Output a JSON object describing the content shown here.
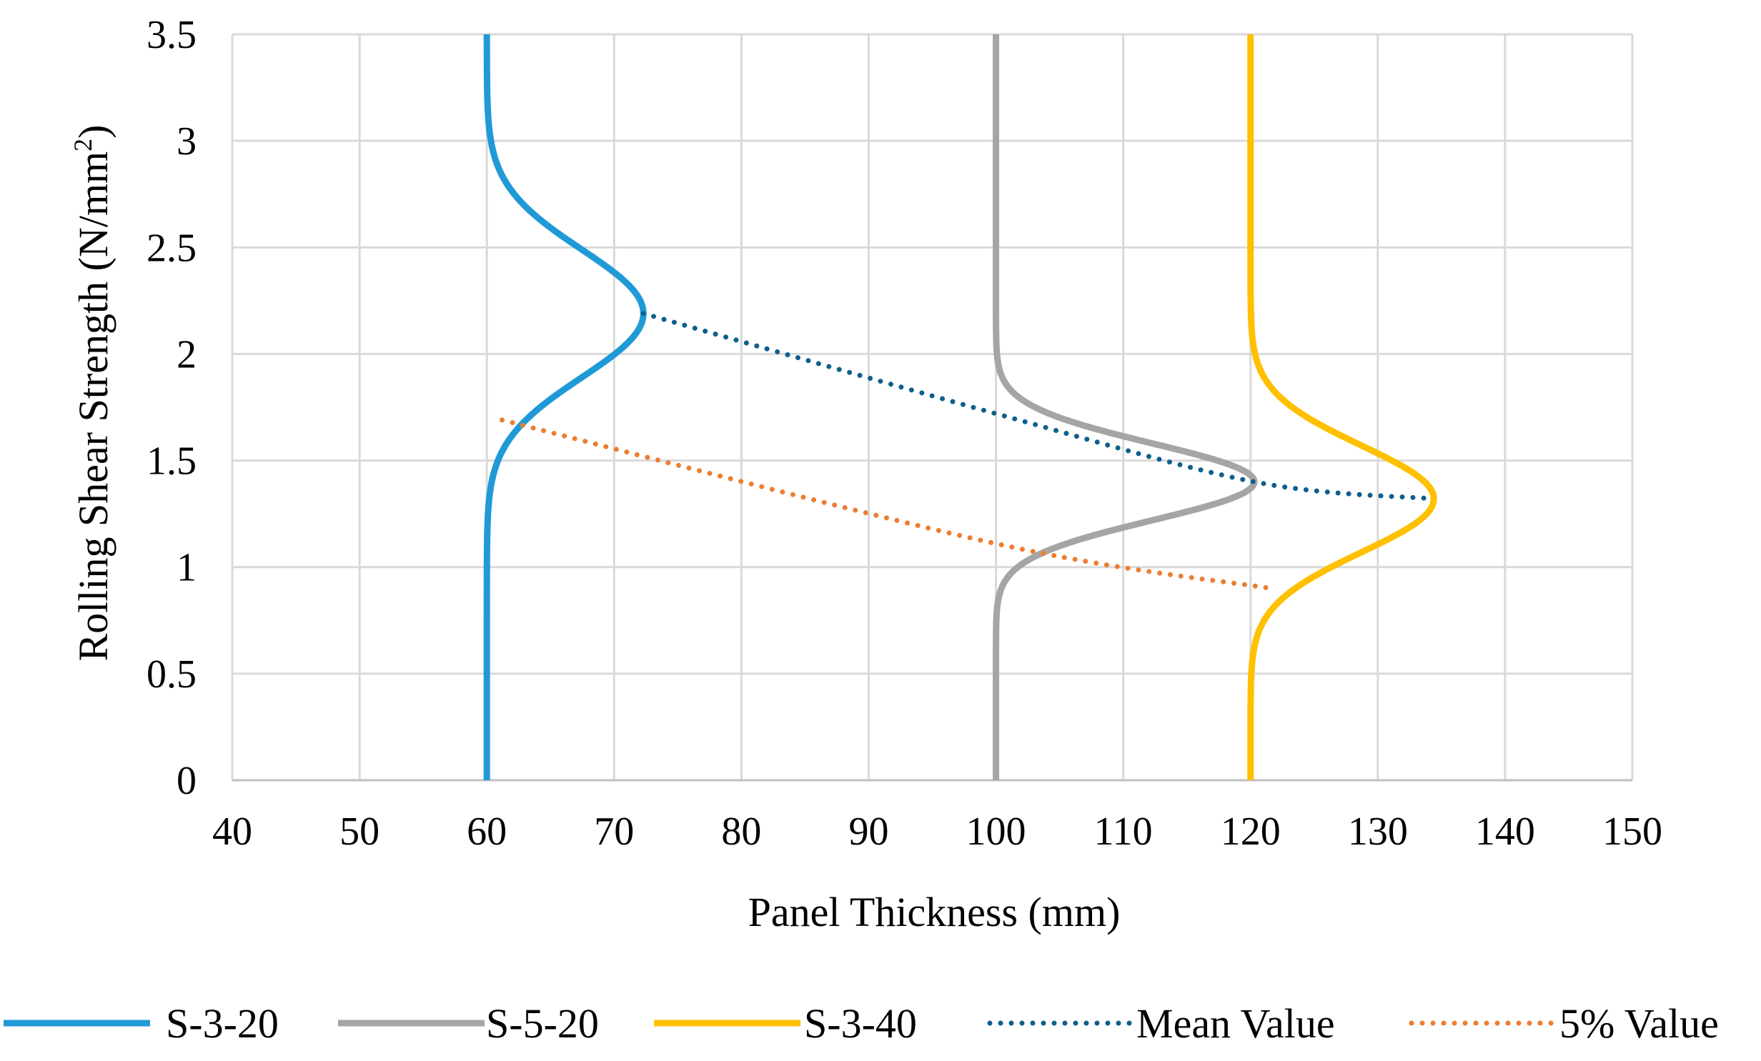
{
  "chart_data": {
    "type": "line",
    "xlabel": "Panel Thickness (mm)",
    "ylabel_main": "Rolling  Shear Strength (N/mm",
    "ylabel_sup": "2",
    "ylabel_end": ")",
    "xlim": [
      40,
      150
    ],
    "ylim": [
      0,
      3.5
    ],
    "x_ticks": [
      40,
      50,
      60,
      70,
      80,
      90,
      100,
      110,
      120,
      130,
      140,
      150
    ],
    "y_ticks": [
      0,
      0.5,
      1,
      1.5,
      2,
      2.5,
      3,
      3.5
    ],
    "x_tick_labels": [
      "40",
      "50",
      "60",
      "70",
      "80",
      "90",
      "100",
      "110",
      "120",
      "130",
      "140",
      "150"
    ],
    "y_tick_labels": [
      "0",
      "0.5",
      "1",
      "1.5",
      "2",
      "2.5",
      "3",
      "3.5"
    ],
    "grid": true,
    "legend_position": "bottom",
    "distribution_series": [
      {
        "name": "S-3-20",
        "color": "#1f9ad6",
        "base_x": 60,
        "peak_width": 12.3,
        "mean_strength": 2.19,
        "std_dev": 0.3,
        "y_range": [
          0,
          3.5
        ]
      },
      {
        "name": "S-5-20",
        "color": "#a5a5a5",
        "base_x": 100,
        "peak_width": 20.3,
        "mean_strength": 1.4,
        "std_dev": 0.18,
        "y_range": [
          0,
          3.5
        ]
      },
      {
        "name": "S-3-40",
        "color": "#ffc000",
        "base_x": 120,
        "peak_width": 14.4,
        "mean_strength": 1.32,
        "std_dev": 0.25,
        "y_range": [
          0,
          3.5
        ]
      }
    ],
    "trend_series": [
      {
        "name": "Mean Value",
        "color": "#0e5f8c",
        "points": [
          {
            "x": 72.3,
            "y": 2.19
          },
          {
            "x": 100,
            "y": 1.72
          },
          {
            "x": 120.3,
            "y": 1.4
          },
          {
            "x": 134.4,
            "y": 1.32
          }
        ]
      },
      {
        "name": "5% Value",
        "color": "#ed7d31",
        "points": [
          {
            "x": 61.2,
            "y": 1.69
          },
          {
            "x": 100,
            "y": 1.11
          },
          {
            "x": 121.6,
            "y": 0.9
          }
        ]
      }
    ],
    "legend": [
      {
        "label": "S-3-20",
        "style": "solid",
        "color": "#1f9ad6"
      },
      {
        "label": "S-5-20",
        "style": "solid",
        "color": "#a5a5a5"
      },
      {
        "label": "S-3-40",
        "style": "solid",
        "color": "#ffc000"
      },
      {
        "label": "Mean Value",
        "style": "dotted",
        "color": "#0e5f8c"
      },
      {
        "label": "5% Value",
        "style": "dotted",
        "color": "#ed7d31"
      }
    ],
    "colors": {
      "grid": "#d9d9d9",
      "text": "#000000"
    }
  }
}
